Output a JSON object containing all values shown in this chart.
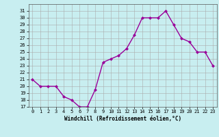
{
  "x": [
    0,
    1,
    2,
    3,
    4,
    5,
    6,
    7,
    8,
    9,
    10,
    11,
    12,
    13,
    14,
    15,
    16,
    17,
    18,
    19,
    20,
    21,
    22,
    23
  ],
  "y": [
    21,
    20,
    20,
    20,
    18.5,
    18,
    17,
    17,
    19.5,
    23.5,
    24,
    24.5,
    25.5,
    27.5,
    30,
    30,
    30,
    31,
    29,
    27,
    26.5,
    25,
    25,
    23
  ],
  "line_color": "#990099",
  "marker": "D",
  "marker_size": 2,
  "bg_color": "#c8eef0",
  "grid_color": "#aaaaaa",
  "xlabel": "Windchill (Refroidissement éolien,°C)",
  "ylim": [
    17,
    32
  ],
  "xlim": [
    -0.5,
    23.5
  ],
  "yticks": [
    17,
    18,
    19,
    20,
    21,
    22,
    23,
    24,
    25,
    26,
    27,
    28,
    29,
    30,
    31
  ],
  "xticks": [
    0,
    1,
    2,
    3,
    4,
    5,
    6,
    7,
    8,
    9,
    10,
    11,
    12,
    13,
    14,
    15,
    16,
    17,
    18,
    19,
    20,
    21,
    22,
    23
  ],
  "tick_fontsize": 5,
  "xlabel_fontsize": 5.5,
  "line_width": 1.0,
  "spine_color": "#555555"
}
